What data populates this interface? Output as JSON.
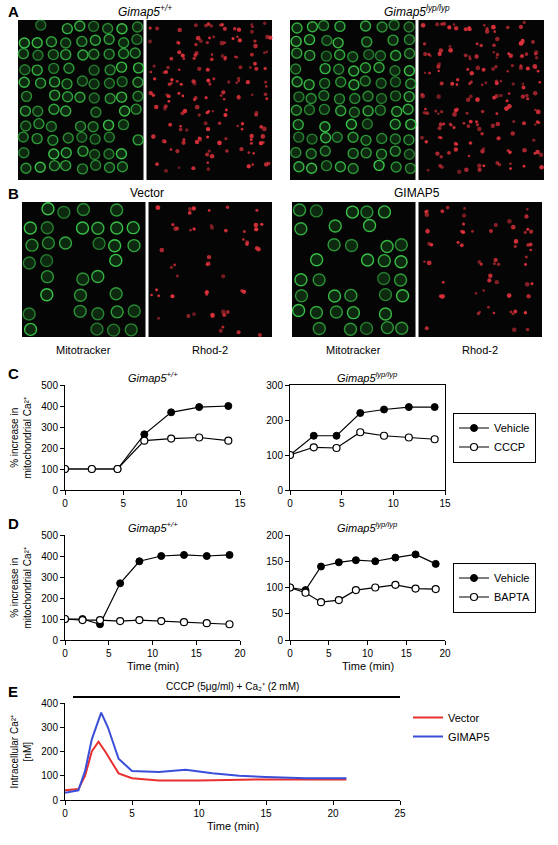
{
  "image_panels": [
    {
      "panel_label": "A",
      "groups": [
        {
          "title": "Gimap5+/+",
          "images": [
            {
              "color": "#3cc84a"
            },
            {
              "color": "#e0323c"
            }
          ]
        },
        {
          "title": "Gimap5lyp/lyp",
          "images": [
            {
              "color": "#3cc84a"
            },
            {
              "color": "#e0323c"
            }
          ]
        }
      ]
    },
    {
      "panel_label": "B",
      "groups": [
        {
          "title": "Vector",
          "images": [
            {
              "label": "Mitotracker",
              "color": "#3cc84a"
            },
            {
              "label": "Rhod-2",
              "color": "#e0323c"
            }
          ]
        },
        {
          "title": "GIMAP5",
          "images": [
            {
              "label": "Mitotracker",
              "color": "#3cc84a"
            },
            {
              "label": "Rhod-2",
              "color": "#e0323c"
            }
          ]
        }
      ]
    }
  ],
  "chart_data": [
    {
      "panel_label": "C",
      "type": "line",
      "title": "Gimap5+/+",
      "y_label": "% increase in mitochondrial Ca²⁺",
      "x": [
        0,
        2.3,
        4.5,
        6.8,
        9.1,
        11.5,
        14
      ],
      "xlim": [
        0,
        15
      ],
      "xticks": [
        0,
        5,
        10,
        15
      ],
      "ylim": [
        0,
        500
      ],
      "yticks": [
        0,
        100,
        200,
        300,
        400,
        500
      ],
      "grid": false,
      "series": [
        {
          "color": "#000000",
          "marker": "filled",
          "values": [
            100,
            100,
            100,
            265,
            370,
            395,
            400
          ]
        },
        {
          "color": "#000000",
          "marker": "open",
          "values": [
            100,
            100,
            100,
            235,
            245,
            250,
            235
          ]
        }
      ]
    },
    {
      "type": "line",
      "title": "Gimap5lyp/lyp",
      "x": [
        0,
        2.3,
        4.5,
        6.8,
        9.1,
        11.5,
        14
      ],
      "xlim": [
        0,
        15
      ],
      "xticks": [
        0,
        5,
        10,
        15
      ],
      "ylim": [
        0,
        300
      ],
      "yticks": [
        0,
        100,
        200,
        300
      ],
      "grid": false,
      "legend": "right",
      "series": [
        {
          "name": "Vehicle",
          "color": "#000000",
          "marker": "filled",
          "values": [
            100,
            155,
            155,
            220,
            230,
            237,
            237
          ]
        },
        {
          "name": "CCCP",
          "color": "#000000",
          "marker": "open",
          "values": [
            100,
            122,
            120,
            165,
            155,
            150,
            145
          ]
        }
      ]
    },
    {
      "panel_label": "D",
      "type": "line",
      "title": "Gimap5+/+",
      "y_label": "% increase in mitochondrial Ca²⁺",
      "x_label": "Time (min)",
      "x": [
        0,
        2,
        4,
        6.3,
        8.5,
        11,
        13.6,
        16.2,
        18.8
      ],
      "xlim": [
        0,
        20
      ],
      "xticks": [
        0,
        5,
        10,
        15,
        20
      ],
      "ylim": [
        0,
        500
      ],
      "yticks": [
        0,
        100,
        200,
        300,
        400,
        500
      ],
      "grid": false,
      "series": [
        {
          "color": "#000000",
          "marker": "filled",
          "values": [
            100,
            100,
            75,
            270,
            375,
            400,
            405,
            400,
            405
          ]
        },
        {
          "color": "#000000",
          "marker": "open",
          "values": [
            100,
            95,
            95,
            90,
            95,
            90,
            85,
            80,
            75
          ]
        }
      ]
    },
    {
      "type": "line",
      "title": "Gimap5lyp/lyp",
      "x_label": "Time (min)",
      "x": [
        0,
        2,
        4,
        6.3,
        8.5,
        11,
        13.6,
        16.2,
        18.8
      ],
      "xlim": [
        0,
        20
      ],
      "xticks": [
        0,
        5,
        10,
        15,
        20
      ],
      "ylim": [
        0,
        200
      ],
      "yticks": [
        0,
        50,
        100,
        150,
        200
      ],
      "grid": false,
      "legend": "right",
      "series": [
        {
          "name": "Vehicle",
          "color": "#000000",
          "marker": "filled",
          "values": [
            100,
            95,
            140,
            148,
            152,
            150,
            157,
            163,
            145
          ]
        },
        {
          "name": "BAPTA",
          "color": "#000000",
          "marker": "open",
          "values": [
            100,
            90,
            72,
            76,
            95,
            100,
            105,
            98,
            97
          ]
        }
      ]
    },
    {
      "panel_label": "E",
      "type": "line",
      "annotation": "CCCP (5μg/ml) + Ca₂⁺ (2 mM)",
      "y_label": "Intracellular Ca²⁺ [nM]",
      "x_label": "Time (min)",
      "xlim": [
        0,
        25
      ],
      "xticks": [
        0,
        5,
        10,
        15,
        20,
        25
      ],
      "ylim": [
        0,
        400
      ],
      "yticks": [
        0,
        100,
        200,
        300,
        400
      ],
      "grid": false,
      "legend": "right",
      "series": [
        {
          "name": "Vector",
          "color": "#e8312f",
          "x": [
            0,
            1,
            1.5,
            2,
            2.5,
            3,
            4,
            5,
            7,
            10,
            15,
            21
          ],
          "values": [
            40,
            45,
            100,
            200,
            240,
            200,
            110,
            90,
            80,
            80,
            85,
            85
          ]
        },
        {
          "name": "GIMAP5",
          "color": "#3a4fd8",
          "x": [
            0,
            1,
            1.5,
            2,
            2.7,
            3.2,
            4,
            5,
            7,
            9,
            11,
            13,
            15,
            18,
            21
          ],
          "values": [
            30,
            40,
            120,
            250,
            360,
            300,
            170,
            120,
            115,
            125,
            110,
            100,
            95,
            90,
            90
          ]
        }
      ]
    }
  ]
}
